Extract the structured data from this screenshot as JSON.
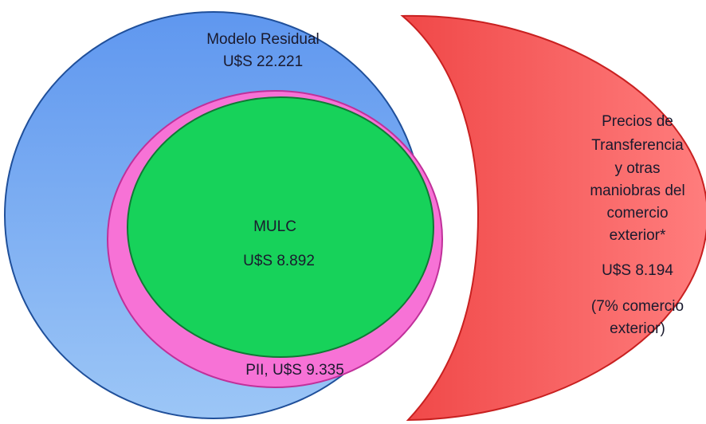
{
  "outer": {
    "label": "Modelo Residual",
    "amount": "U$S 22.221"
  },
  "middle": {
    "label": "PII, U$S 9.335"
  },
  "inner": {
    "label": "MULC",
    "amount": "U$S 8.892"
  },
  "side": {
    "lines": [
      "Precios de",
      "Transferencia",
      "y otras",
      "maniobras del",
      "comercio",
      "exterior*"
    ],
    "amount": "U$S 8.194",
    "note": [
      "(7% comercio",
      "exterior)"
    ]
  }
}
